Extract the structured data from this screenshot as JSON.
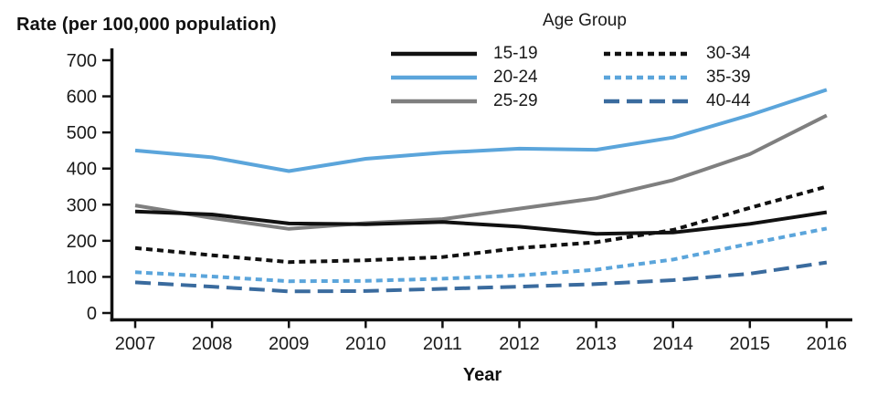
{
  "chart_data": {
    "type": "line",
    "title": "Rate (per 100,000 population)",
    "legend_title": "Age Group",
    "xlabel": "Year",
    "x": [
      2007,
      2008,
      2009,
      2010,
      2011,
      2012,
      2013,
      2014,
      2015,
      2016
    ],
    "ylim": [
      0,
      700
    ],
    "ytick_interval": 100,
    "yticks": [
      0,
      100,
      200,
      300,
      400,
      500,
      600,
      700
    ],
    "grid": false,
    "legend_position": "top-center-two-columns",
    "colors": {
      "black": "#111111",
      "light_blue": "#5BA5DB",
      "gray": "#7F7F7F",
      "steel_blue": "#3A6B9E"
    },
    "series": [
      {
        "name": "25-29",
        "color": "#7F7F7F",
        "dash": "solid",
        "values": [
          298,
          263,
          233,
          249,
          260,
          289,
          318,
          368,
          440,
          547
        ]
      },
      {
        "name": "20-24",
        "color": "#5BA5DB",
        "dash": "solid",
        "values": [
          450,
          431,
          393,
          427,
          444,
          455,
          452,
          486,
          548,
          618
        ]
      },
      {
        "name": "15-19",
        "color": "#111111",
        "dash": "solid",
        "values": [
          281,
          273,
          248,
          246,
          252,
          239,
          219,
          223,
          247,
          279
        ]
      },
      {
        "name": "30-34",
        "color": "#111111",
        "dash": "short",
        "values": [
          180,
          160,
          141,
          146,
          155,
          180,
          196,
          230,
          291,
          350
        ]
      },
      {
        "name": "35-39",
        "color": "#5BA5DB",
        "dash": "short",
        "values": [
          113,
          101,
          88,
          89,
          95,
          104,
          120,
          148,
          192,
          234
        ]
      },
      {
        "name": "40-44",
        "color": "#3A6B9E",
        "dash": "long",
        "values": [
          85,
          73,
          60,
          61,
          67,
          73,
          80,
          91,
          109,
          140
        ]
      }
    ],
    "legend_columns": [
      [
        "15-19",
        "20-24",
        "25-29"
      ],
      [
        "30-34",
        "35-39",
        "40-44"
      ]
    ]
  }
}
